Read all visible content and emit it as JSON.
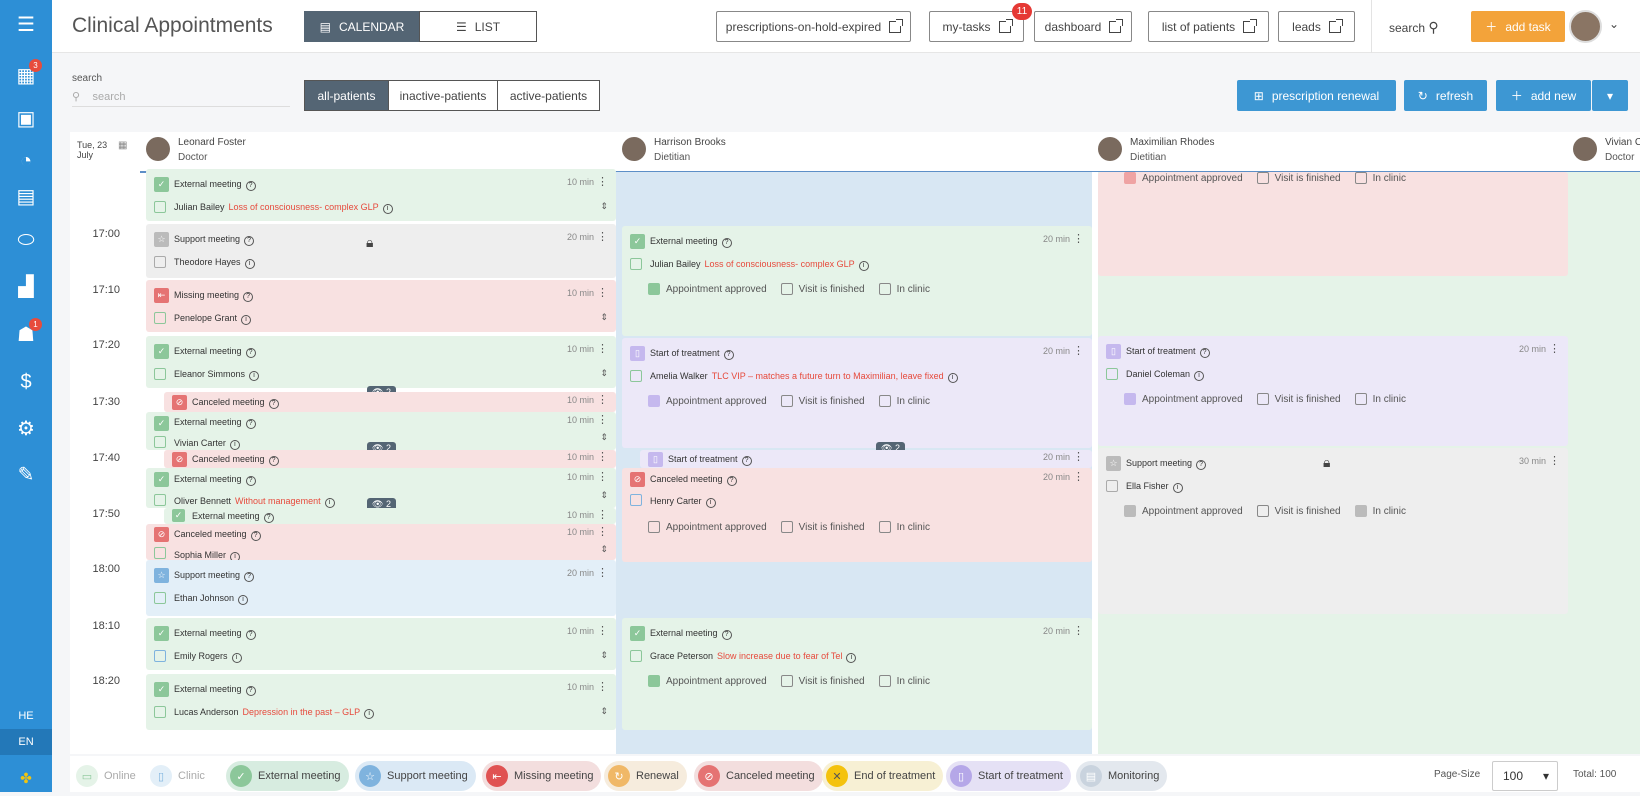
{
  "sidebar": {
    "badges": [
      "3",
      "1"
    ],
    "langs": [
      "HE",
      "EN"
    ]
  },
  "header": {
    "title": "Clinical Appointments",
    "view_calendar": "CALENDAR",
    "view_list": "LIST",
    "links": [
      "prescriptions-on-hold-expired",
      "my-tasks",
      "dashboard",
      "list of patients",
      "leads"
    ],
    "mytasks_badge": "11",
    "search_label": "search",
    "add_task": "add task"
  },
  "toolbar": {
    "search_label": "search",
    "search_placeholder": "search",
    "filters": [
      "all-patients",
      "inactive-patients",
      "active-patients"
    ],
    "prescription_renewal": "prescription renewal",
    "refresh": "refresh",
    "add_new": "add new"
  },
  "date": {
    "day": "Tue, 23",
    "month": "July"
  },
  "columns": [
    {
      "name": "Leonard Foster",
      "role": "Doctor"
    },
    {
      "name": "Harrison Brooks",
      "role": "Dietitian"
    },
    {
      "name": "Maximilian Rhodes",
      "role": "Dietitian"
    },
    {
      "name": "Vivian C",
      "role": "Doctor"
    }
  ],
  "times": [
    "17:00",
    "17:10",
    "17:20",
    "17:30",
    "17:40",
    "17:50",
    "18:00",
    "18:10",
    "18:20"
  ],
  "checks": {
    "approved": "Appointment approved",
    "finished": "Visit is finished",
    "clinic": "In clinic"
  },
  "col1": [
    {
      "type": "External meeting",
      "patient": "Julian Bailey",
      "note": "Loss of consciousness- complex GLP",
      "dur": "10 min"
    },
    {
      "type": "Support meeting",
      "patient": "Theodore Hayes",
      "note": "",
      "dur": "20 min"
    },
    {
      "type": "Missing meeting",
      "patient": "Penelope Grant",
      "note": "",
      "dur": "10 min"
    },
    {
      "type": "External meeting",
      "patient": "Eleanor Simmons",
      "note": "",
      "dur": "10 min"
    },
    {
      "type": "Canceled meeting",
      "patient": "",
      "note": "",
      "dur": "10 min"
    },
    {
      "type": "External meeting",
      "patient": "Vivian Carter",
      "note": "",
      "dur": "10 min"
    },
    {
      "type": "Canceled meeting",
      "patient": "",
      "note": "",
      "dur": "10 min"
    },
    {
      "type": "External meeting",
      "patient": "Oliver Bennett",
      "note": "Without management",
      "dur": "10 min"
    },
    {
      "type": "External meeting",
      "patient": "",
      "note": "",
      "dur": "10 min"
    },
    {
      "type": "Canceled meeting",
      "patient": "Sophia Miller",
      "note": "",
      "dur": "10 min"
    },
    {
      "type": "Support meeting",
      "patient": "Ethan Johnson",
      "note": "",
      "dur": "20 min"
    },
    {
      "type": "External meeting",
      "patient": "Emily Rogers",
      "note": "",
      "dur": "10 min"
    },
    {
      "type": "External meeting",
      "patient": "Lucas Anderson",
      "note": "Depression in the past – GLP",
      "dur": "10 min"
    }
  ],
  "col2": [
    {
      "type": "External meeting",
      "patient": "Julian Bailey",
      "note": "Loss of consciousness- complex GLP",
      "dur": "20 min"
    },
    {
      "type": "Start of treatment",
      "patient": "Amelia Walker",
      "note": "TLC VIP – matches a future turn to Maximilian, leave fixed",
      "dur": "20 min"
    },
    {
      "type": "Start of treatment",
      "patient": "",
      "note": "",
      "dur": "20 min"
    },
    {
      "type": "Canceled meeting",
      "patient": "Henry Carter",
      "note": "",
      "dur": "20 min"
    },
    {
      "type": "External meeting",
      "patient": "Grace Peterson",
      "note": "Slow increase due to fear of Tel",
      "dur": "20 min"
    }
  ],
  "col3": [
    {
      "type": "Start of treatment",
      "patient": "Daniel Coleman",
      "note": "",
      "dur": "20 min"
    },
    {
      "type": "Support meeting",
      "patient": "Ella Fisher",
      "note": "",
      "dur": "30 min"
    }
  ],
  "overlap_count": "2",
  "legend": [
    "Online",
    "Clinic",
    "External meeting",
    "Support meeting",
    "Missing meeting",
    "Renewal",
    "Canceled meeting",
    "End of treatment",
    "Start of treatment",
    "Monitoring"
  ],
  "pager": {
    "label": "Page-Size",
    "value": "100",
    "total": "Total: 100"
  }
}
